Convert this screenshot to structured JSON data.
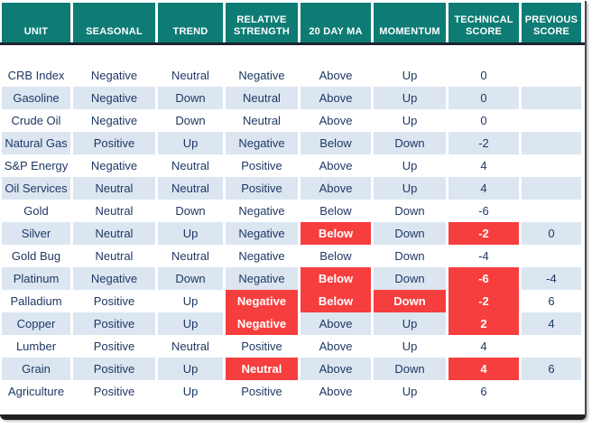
{
  "colors": {
    "header_bg": "#0E7C74",
    "header_text": "#FFFFFF",
    "row_bg": "#FFFFFF",
    "row_alt_bg": "#DCE6F1",
    "text": "#1F3864",
    "highlight_bg": "#F63E3E",
    "highlight_text": "#FFFFFF",
    "divider": "#1A2433"
  },
  "chart_data": {
    "type": "table",
    "columns": [
      "UNIT",
      "SEASONAL",
      "TREND",
      "RELATIVE STRENGTH",
      "20 DAY MA",
      "MOMENTUM",
      "TECHNICAL SCORE",
      "PREVIOUS SCORE"
    ],
    "rows": [
      {
        "unit": "CRB Index",
        "values": [
          "Negative",
          "Neutral",
          "Negative",
          "Above",
          "Up",
          "0",
          ""
        ],
        "red": []
      },
      {
        "unit": "Gasoline",
        "values": [
          "Negative",
          "Down",
          "Neutral",
          "Above",
          "Up",
          "0",
          ""
        ],
        "red": []
      },
      {
        "unit": "Crude Oil",
        "values": [
          "Negative",
          "Down",
          "Neutral",
          "Above",
          "Up",
          "0",
          ""
        ],
        "red": []
      },
      {
        "unit": "Natural Gas",
        "values": [
          "Positive",
          "Up",
          "Negative",
          "Below",
          "Down",
          "-2",
          ""
        ],
        "red": []
      },
      {
        "unit": "S&P Energy",
        "values": [
          "Negative",
          "Neutral",
          "Positive",
          "Above",
          "Up",
          "4",
          ""
        ],
        "red": []
      },
      {
        "unit": "Oil Services",
        "values": [
          "Neutral",
          "Neutral",
          "Positive",
          "Above",
          "Up",
          "4",
          ""
        ],
        "red": []
      },
      {
        "unit": "Gold",
        "values": [
          "Neutral",
          "Down",
          "Negative",
          "Below",
          "Down",
          "-6",
          ""
        ],
        "red": []
      },
      {
        "unit": "Silver",
        "values": [
          "Neutral",
          "Up",
          "Negative",
          "Below",
          "Down",
          "-2",
          "0"
        ],
        "red": [
          3,
          5
        ]
      },
      {
        "unit": "Gold Bug",
        "values": [
          "Neutral",
          "Neutral",
          "Negative",
          "Below",
          "Down",
          "-4",
          ""
        ],
        "red": []
      },
      {
        "unit": "Platinum",
        "values": [
          "Negative",
          "Down",
          "Negative",
          "Below",
          "Down",
          "-6",
          "-4"
        ],
        "red": [
          3,
          5
        ]
      },
      {
        "unit": "Palladium",
        "values": [
          "Positive",
          "Up",
          "Negative",
          "Below",
          "Down",
          "-2",
          "6"
        ],
        "red": [
          2,
          3,
          4,
          5
        ]
      },
      {
        "unit": "Copper",
        "values": [
          "Positive",
          "Up",
          "Negative",
          "Above",
          "Up",
          "2",
          "4"
        ],
        "red": [
          2,
          5
        ]
      },
      {
        "unit": "Lumber",
        "values": [
          "Positive",
          "Neutral",
          "Positive",
          "Above",
          "Up",
          "4",
          ""
        ],
        "red": []
      },
      {
        "unit": "Grain",
        "values": [
          "Positive",
          "Up",
          "Neutral",
          "Above",
          "Down",
          "4",
          "6"
        ],
        "red": [
          2,
          5
        ]
      },
      {
        "unit": "Agriculture",
        "values": [
          "Positive",
          "Up",
          "Positive",
          "Above",
          "Up",
          "6",
          ""
        ],
        "red": []
      }
    ]
  }
}
